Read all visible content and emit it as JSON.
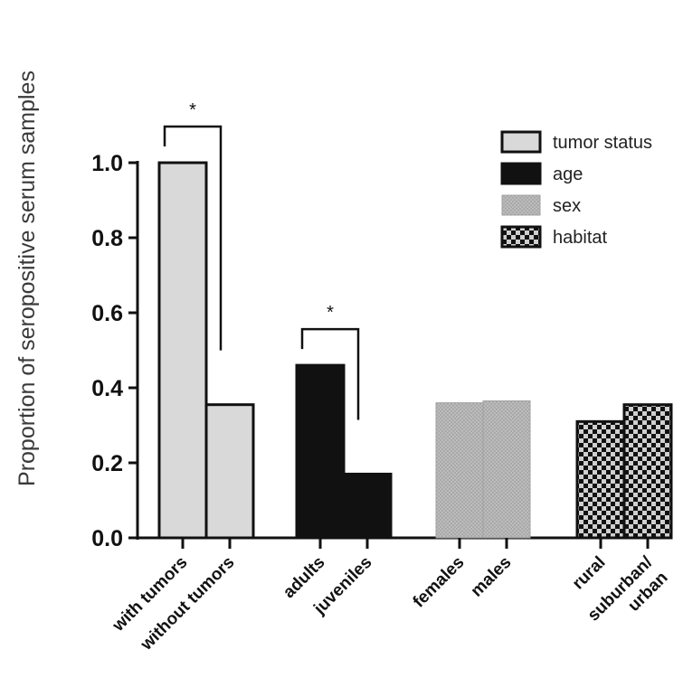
{
  "chart_data": {
    "type": "bar",
    "ylabel": "Proportion of seropositive serum samples",
    "ylim": [
      0,
      1.0
    ],
    "yticks": [
      "0.0",
      "0.2",
      "0.4",
      "0.6",
      "0.8",
      "1.0"
    ],
    "grid": false,
    "legend_position": "top-right",
    "groups": [
      {
        "name": "tumor status",
        "pattern": "light",
        "color": "#d9d9d9",
        "categories": [
          {
            "label": [
              "with tumors"
            ],
            "value": 1.0
          },
          {
            "label": [
              "without tumors"
            ],
            "value": 0.355
          }
        ]
      },
      {
        "name": "age",
        "pattern": "black",
        "color": "#111111",
        "categories": [
          {
            "label": [
              "adults"
            ],
            "value": 0.46
          },
          {
            "label": [
              "juveniles"
            ],
            "value": 0.17
          }
        ]
      },
      {
        "name": "sex",
        "pattern": "gray",
        "color": "#b8b8b8",
        "categories": [
          {
            "label": [
              "females"
            ],
            "value": 0.36
          },
          {
            "label": [
              "males"
            ],
            "value": 0.365
          }
        ]
      },
      {
        "name": "habitat",
        "pattern": "checker",
        "color": "#1a1a1a",
        "categories": [
          {
            "label": [
              "rural"
            ],
            "value": 0.31
          },
          {
            "label": [
              "suburban/",
              "urban"
            ],
            "value": 0.355
          }
        ]
      }
    ],
    "annotations": [
      {
        "text": "*",
        "between": [
          "with tumors",
          "without tumors"
        ]
      },
      {
        "text": "*",
        "between": [
          "adults",
          "juveniles"
        ]
      }
    ]
  }
}
